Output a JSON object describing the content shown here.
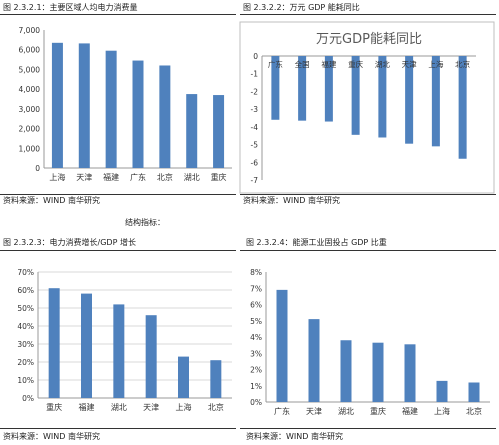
{
  "panels": [
    {
      "caption": "图 2.3.2.1：主要区域人均电力消费量",
      "source": "资料来源：WIND 南华研究"
    },
    {
      "caption": "图 2.3.2.2：万元 GDP 能耗同比",
      "source": "资料来源：WIND 南华研究"
    },
    {
      "caption": "图 2.3.2.3：电力消费增长/GDP 增长",
      "source": "资料来源：WIND 南华研究"
    },
    {
      "caption": "图 2.3.2.4：能源工业固投占 GDP 比重",
      "source": "资料来源：WIND 南华研究"
    }
  ],
  "section_title": "结构指标：",
  "colors": {
    "bar": "#4f81bd",
    "axis": "#999999",
    "grid": "#d9d9d9",
    "frame": "#bfbfbf"
  },
  "chart_data": [
    {
      "type": "bar",
      "categories": [
        "上海",
        "天津",
        "福建",
        "广东",
        "北京",
        "湖北",
        "重庆"
      ],
      "values": [
        6350,
        6320,
        5950,
        5450,
        5200,
        3750,
        3700
      ],
      "ylim": [
        0,
        7000
      ],
      "yticks": [
        "0",
        "1,000",
        "2,000",
        "3,000",
        "4,000",
        "5,000",
        "6,000",
        "7,000"
      ],
      "grid": false
    },
    {
      "type": "bar",
      "title": "万元GDP能耗同比",
      "categories": [
        "广东",
        "全国",
        "福建",
        "重庆",
        "湖北",
        "天津",
        "上海",
        "北京"
      ],
      "values": [
        -3.6,
        -3.65,
        -3.7,
        -4.45,
        -4.6,
        -4.95,
        -5.1,
        -5.8
      ],
      "ylim": [
        -7,
        0
      ],
      "yticks": [
        "0",
        "-1",
        "-2",
        "-3",
        "-4",
        "-5",
        "-6",
        "-7"
      ],
      "grid": false,
      "legend": "none"
    },
    {
      "type": "bar",
      "categories": [
        "重庆",
        "福建",
        "湖北",
        "天津",
        "上海",
        "北京"
      ],
      "values": [
        61,
        58,
        52,
        46,
        23,
        21
      ],
      "ylim": [
        0,
        70
      ],
      "yticks": [
        "0%",
        "10%",
        "20%",
        "30%",
        "40%",
        "50%",
        "60%",
        "70%"
      ],
      "grid": true
    },
    {
      "type": "bar",
      "categories": [
        "广东",
        "天津",
        "湖北",
        "重庆",
        "福建",
        "上海",
        "北京"
      ],
      "values": [
        6.9,
        5.1,
        3.8,
        3.65,
        3.55,
        1.3,
        1.2
      ],
      "ylim": [
        0,
        8
      ],
      "yticks": [
        "0%",
        "1%",
        "2%",
        "3%",
        "4%",
        "5%",
        "6%",
        "7%",
        "8%"
      ],
      "grid": false
    }
  ]
}
